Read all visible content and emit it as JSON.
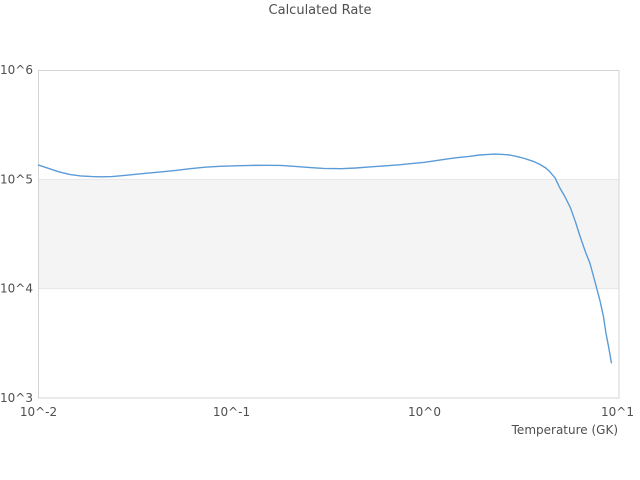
{
  "chart_data": {
    "type": "line",
    "title": "Calculated Rate",
    "xlabel": "Temperature (GK)",
    "ylabel": "",
    "x_scale": "log",
    "y_scale": "log",
    "xlim": [
      0.01,
      10
    ],
    "ylim": [
      1000,
      1000000
    ],
    "grid": "off",
    "legend": "none",
    "x_ticks": [
      {
        "value": 0.01,
        "label": "10^-2"
      },
      {
        "value": 0.1,
        "label": "10^-1"
      },
      {
        "value": 1,
        "label": "10^0"
      },
      {
        "value": 10,
        "label": "10^1"
      }
    ],
    "y_ticks": [
      {
        "value": 1000000,
        "label": "10^6"
      },
      {
        "value": 100000,
        "label": "10^5"
      },
      {
        "value": 10000,
        "label": "10^4"
      },
      {
        "value": 1000,
        "label": "10^3"
      }
    ],
    "bands": [
      {
        "y_from": 10000,
        "y_to": 100000,
        "color": "#f4f4f4"
      }
    ],
    "series": [
      {
        "name": "calculated-rate",
        "color": "#5b9bd8",
        "points": [
          [
            0.01,
            135000
          ],
          [
            0.0113,
            126000
          ],
          [
            0.0128,
            117000
          ],
          [
            0.0145,
            111000
          ],
          [
            0.0165,
            107500
          ],
          [
            0.019,
            106000
          ],
          [
            0.021,
            105500
          ],
          [
            0.024,
            106000
          ],
          [
            0.027,
            108000
          ],
          [
            0.03,
            110000
          ],
          [
            0.036,
            113500
          ],
          [
            0.043,
            117000
          ],
          [
            0.052,
            121000
          ],
          [
            0.061,
            125000
          ],
          [
            0.073,
            129000
          ],
          [
            0.087,
            131500
          ],
          [
            0.105,
            133000
          ],
          [
            0.125,
            134000
          ],
          [
            0.15,
            134500
          ],
          [
            0.18,
            134000
          ],
          [
            0.21,
            131500
          ],
          [
            0.256,
            128000
          ],
          [
            0.3,
            126000
          ],
          [
            0.37,
            125000
          ],
          [
            0.44,
            127000
          ],
          [
            0.52,
            130000
          ],
          [
            0.63,
            133000
          ],
          [
            0.75,
            136000
          ],
          [
            0.87,
            140000
          ],
          [
            1.0,
            143000
          ],
          [
            1.2,
            150000
          ],
          [
            1.43,
            157000
          ],
          [
            1.7,
            162000
          ],
          [
            1.93,
            167000
          ],
          [
            2.15,
            169000
          ],
          [
            2.3,
            170000
          ],
          [
            2.55,
            169000
          ],
          [
            2.76,
            167000
          ],
          [
            3.0,
            162000
          ],
          [
            3.3,
            155000
          ],
          [
            3.7,
            145000
          ],
          [
            3.96,
            137000
          ],
          [
            4.25,
            127000
          ],
          [
            4.47,
            117000
          ],
          [
            4.75,
            103000
          ],
          [
            5.0,
            85000
          ],
          [
            5.35,
            69000
          ],
          [
            5.7,
            55000
          ],
          [
            6.05,
            41000
          ],
          [
            6.4,
            30000
          ],
          [
            6.8,
            22000
          ],
          [
            7.2,
            17000
          ],
          [
            7.6,
            12000
          ],
          [
            8.1,
            7900
          ],
          [
            8.45,
            5600
          ],
          [
            8.7,
            4000
          ],
          [
            9.0,
            2900
          ],
          [
            9.3,
            2100
          ]
        ]
      }
    ]
  },
  "colors": {
    "background": "#ffffff",
    "frame": "#d4d4d4",
    "band_fill": "#f4f4f4",
    "band_edge": "#e7e7e7",
    "text": "#4f4f4f",
    "line": "#5b9bd8"
  }
}
